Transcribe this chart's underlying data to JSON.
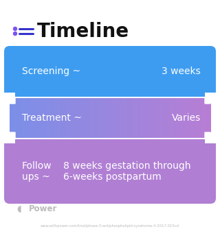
{
  "title": "Timeline",
  "background_color": "#ffffff",
  "title_color": "#111111",
  "title_fontsize": 20,
  "title_icon_color": "#7b52f5",
  "rows": [
    {
      "left_text": "Screening ~",
      "right_text": "3 weeks",
      "color": "#3d9cf0",
      "gradient": false,
      "two_line": false
    },
    {
      "left_text": "Treatment ~",
      "right_text": "Varies",
      "color_start": "#7b8fe8",
      "color_end": "#b87dd4",
      "gradient": true,
      "two_line": false
    },
    {
      "left_line1": "Follow",
      "left_line2": "ups ~",
      "right_line1": "8 weeks gestation through",
      "right_line2": "6-weeks postpartum",
      "color": "#b07fd4",
      "gradient": false,
      "two_line": true
    }
  ],
  "footer_text": "Power",
  "url_text": "www.withpower.com/trial/phase-3-antiphospholipid-syndrome-4-2017-015cd",
  "text_color": "#ffffff",
  "text_fontsize": 9
}
